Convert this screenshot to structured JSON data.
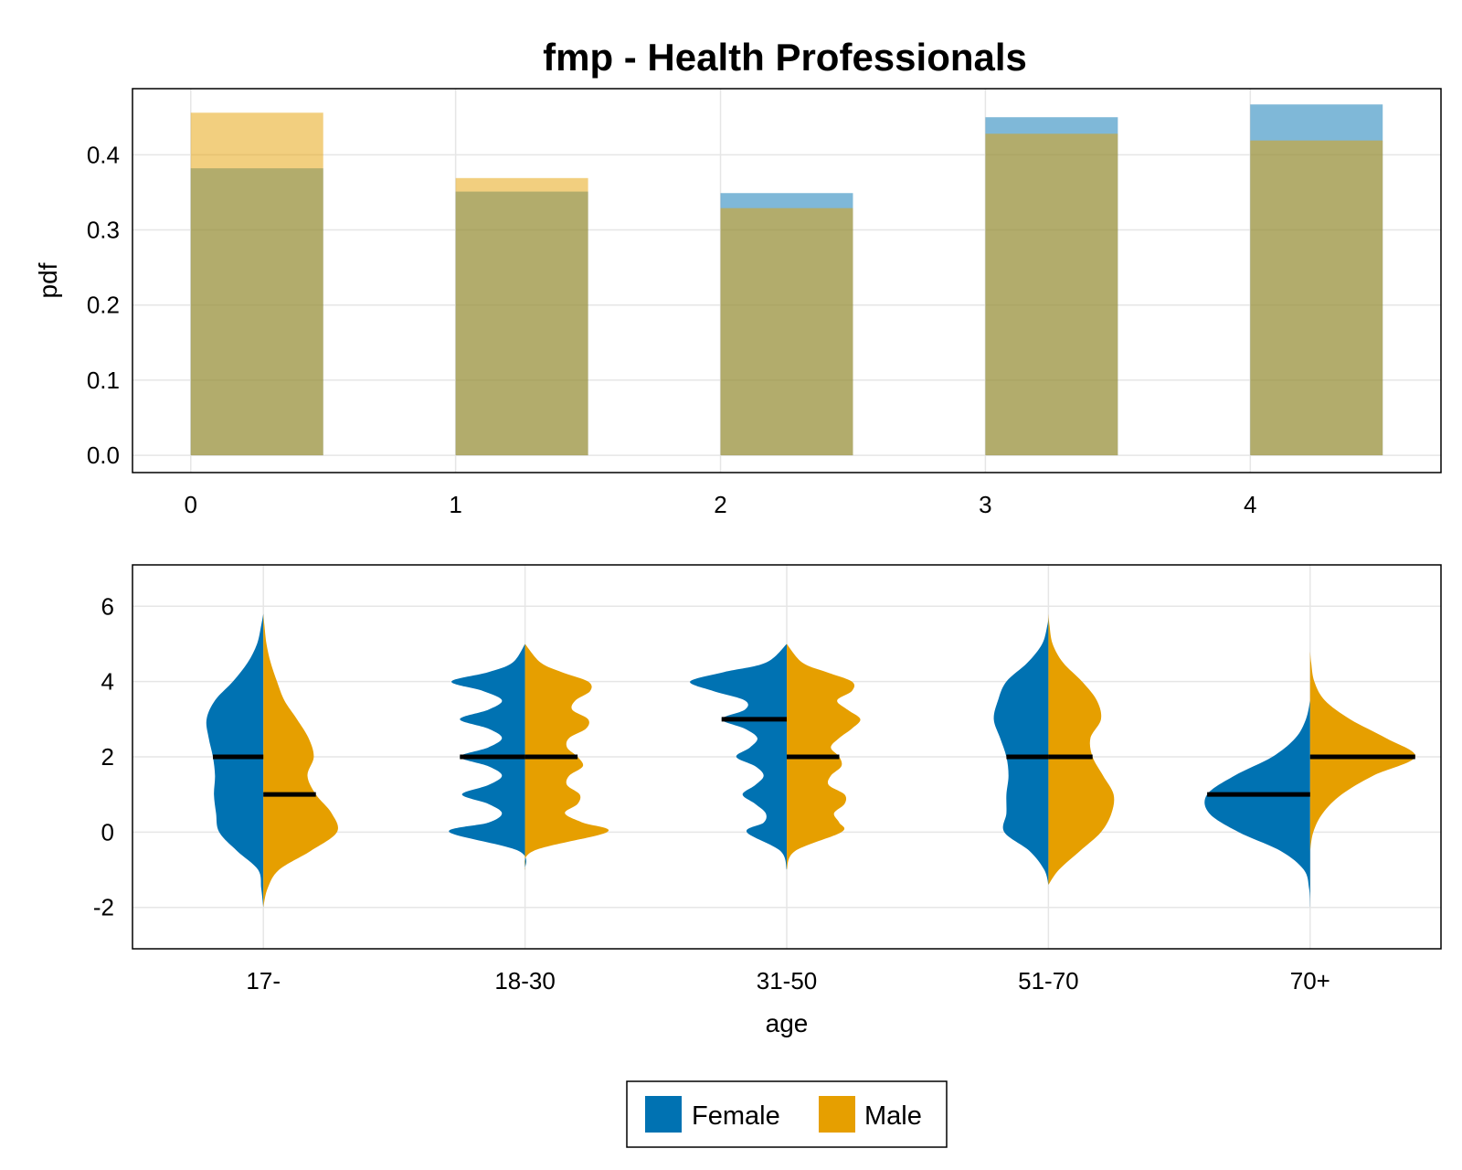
{
  "title": "fmp - Health Professionals",
  "colors": {
    "female": "#0072B2",
    "male": "#E69F00",
    "grid": "#e6e6e6"
  },
  "legend": {
    "placement": "bottom-center",
    "entries": [
      "Female",
      "Male"
    ]
  },
  "chart_data": [
    {
      "type": "bar",
      "ylabel": "pdf",
      "xlabel": "",
      "xlim": [
        -0.22,
        4.72
      ],
      "ylim": [
        -0.023,
        0.488
      ],
      "xticks": [
        0,
        1,
        2,
        3,
        4
      ],
      "xtick_labels": [
        "0",
        "1",
        "2",
        "3",
        "4"
      ],
      "yticks": [
        0.0,
        0.1,
        0.2,
        0.3,
        0.4
      ],
      "ytick_labels": [
        "0.0",
        "0.1",
        "0.2",
        "0.3",
        "0.4"
      ],
      "bar_width": 0.5,
      "grid": true,
      "series": [
        {
          "name": "Female",
          "x": [
            0,
            1,
            2,
            3,
            4
          ],
          "values": [
            0.382,
            0.351,
            0.349,
            0.45,
            0.467
          ]
        },
        {
          "name": "Male",
          "x": [
            0,
            1,
            2,
            3,
            4
          ],
          "values": [
            0.456,
            0.369,
            0.329,
            0.428,
            0.419
          ]
        }
      ]
    },
    {
      "type": "violin",
      "xlabel": "age",
      "ylabel": "",
      "categories": [
        "17-",
        "18-30",
        "31-50",
        "51-70",
        "70+"
      ],
      "ylim": [
        -3.1,
        7.1
      ],
      "yticks": [
        -2,
        0,
        2,
        4,
        6
      ],
      "ytick_labels": [
        "-2",
        "0",
        "2",
        "4",
        "6"
      ],
      "grid": true,
      "series": [
        {
          "name": "Female",
          "medians": [
            2,
            2,
            3,
            2,
            1
          ],
          "profiles": [
            [
              [
                -2,
                0
              ],
              [
                -1.5,
                0.02
              ],
              [
                -1,
                0.05
              ],
              [
                -0.5,
                0.25
              ],
              [
                0,
                0.42
              ],
              [
                0.5,
                0.45
              ],
              [
                1,
                0.47
              ],
              [
                1.5,
                0.46
              ],
              [
                2,
                0.48
              ],
              [
                2.5,
                0.52
              ],
              [
                3,
                0.54
              ],
              [
                3.5,
                0.46
              ],
              [
                4,
                0.29
              ],
              [
                4.5,
                0.15
              ],
              [
                5,
                0.06
              ],
              [
                5.5,
                0.02
              ],
              [
                5.8,
                0
              ]
            ],
            [
              [
                -1,
                0
              ],
              [
                -0.5,
                0.06
              ],
              [
                0,
                0.72
              ],
              [
                0.25,
                0.35
              ],
              [
                0.5,
                0.22
              ],
              [
                0.75,
                0.35
              ],
              [
                1,
                0.6
              ],
              [
                1.25,
                0.35
              ],
              [
                1.5,
                0.22
              ],
              [
                1.75,
                0.35
              ],
              [
                2,
                0.62
              ],
              [
                2.25,
                0.35
              ],
              [
                2.5,
                0.22
              ],
              [
                2.75,
                0.35
              ],
              [
                3,
                0.62
              ],
              [
                3.25,
                0.35
              ],
              [
                3.5,
                0.22
              ],
              [
                3.75,
                0.4
              ],
              [
                4,
                0.7
              ],
              [
                4.25,
                0.35
              ],
              [
                4.5,
                0.12
              ],
              [
                5,
                0
              ]
            ],
            [
              [
                -1,
                0
              ],
              [
                -0.5,
                0.06
              ],
              [
                0,
                0.38
              ],
              [
                0.25,
                0.22
              ],
              [
                0.5,
                0.2
              ],
              [
                0.75,
                0.3
              ],
              [
                1,
                0.42
              ],
              [
                1.25,
                0.3
              ],
              [
                1.5,
                0.22
              ],
              [
                1.75,
                0.3
              ],
              [
                2,
                0.48
              ],
              [
                2.25,
                0.35
              ],
              [
                2.5,
                0.28
              ],
              [
                2.75,
                0.4
              ],
              [
                3,
                0.62
              ],
              [
                3.25,
                0.4
              ],
              [
                3.5,
                0.4
              ],
              [
                3.75,
                0.7
              ],
              [
                4,
                0.92
              ],
              [
                4.25,
                0.6
              ],
              [
                4.5,
                0.2
              ],
              [
                5,
                0
              ]
            ],
            [
              [
                -1.4,
                0
              ],
              [
                -1,
                0.04
              ],
              [
                -0.5,
                0.18
              ],
              [
                0,
                0.42
              ],
              [
                0.5,
                0.4
              ],
              [
                1,
                0.4
              ],
              [
                1.5,
                0.38
              ],
              [
                2,
                0.4
              ],
              [
                2.5,
                0.46
              ],
              [
                3,
                0.52
              ],
              [
                3.5,
                0.48
              ],
              [
                4,
                0.4
              ],
              [
                4.5,
                0.2
              ],
              [
                5,
                0.06
              ],
              [
                5.5,
                0.01
              ],
              [
                5.7,
                0
              ]
            ],
            [
              [
                -2,
                0
              ],
              [
                -1.5,
                0.01
              ],
              [
                -1,
                0.06
              ],
              [
                -0.5,
                0.28
              ],
              [
                0,
                0.68
              ],
              [
                0.5,
                0.96
              ],
              [
                1,
                0.98
              ],
              [
                1.5,
                0.72
              ],
              [
                2,
                0.36
              ],
              [
                2.5,
                0.14
              ],
              [
                3,
                0.04
              ],
              [
                3.5,
                0
              ]
            ]
          ]
        },
        {
          "name": "Male",
          "medians": [
            1,
            2,
            2,
            2,
            2
          ],
          "profiles": [
            [
              [
                -2,
                0
              ],
              [
                -1.5,
                0.04
              ],
              [
                -1,
                0.15
              ],
              [
                -0.5,
                0.45
              ],
              [
                0,
                0.7
              ],
              [
                0.5,
                0.65
              ],
              [
                1,
                0.5
              ],
              [
                1.5,
                0.42
              ],
              [
                2,
                0.48
              ],
              [
                2.5,
                0.43
              ],
              [
                3,
                0.32
              ],
              [
                3.5,
                0.2
              ],
              [
                4,
                0.13
              ],
              [
                4.5,
                0.07
              ],
              [
                5,
                0.03
              ],
              [
                5.5,
                0.01
              ],
              [
                5.8,
                0
              ]
            ],
            [
              [
                -1,
                0
              ],
              [
                -0.5,
                0.08
              ],
              [
                0,
                0.78
              ],
              [
                0.25,
                0.55
              ],
              [
                0.5,
                0.38
              ],
              [
                0.75,
                0.5
              ],
              [
                1,
                0.52
              ],
              [
                1.25,
                0.4
              ],
              [
                1.5,
                0.42
              ],
              [
                1.75,
                0.55
              ],
              [
                2,
                0.5
              ],
              [
                2.25,
                0.4
              ],
              [
                2.5,
                0.42
              ],
              [
                2.75,
                0.58
              ],
              [
                3,
                0.6
              ],
              [
                3.25,
                0.45
              ],
              [
                3.5,
                0.48
              ],
              [
                3.75,
                0.62
              ],
              [
                4,
                0.6
              ],
              [
                4.25,
                0.35
              ],
              [
                4.5,
                0.15
              ],
              [
                5,
                0
              ]
            ],
            [
              [
                -1,
                0
              ],
              [
                -0.5,
                0.08
              ],
              [
                0,
                0.52
              ],
              [
                0.25,
                0.5
              ],
              [
                0.5,
                0.45
              ],
              [
                0.75,
                0.55
              ],
              [
                1,
                0.55
              ],
              [
                1.25,
                0.4
              ],
              [
                1.5,
                0.42
              ],
              [
                1.75,
                0.52
              ],
              [
                2,
                0.5
              ],
              [
                2.25,
                0.42
              ],
              [
                2.5,
                0.5
              ],
              [
                2.75,
                0.62
              ],
              [
                3,
                0.7
              ],
              [
                3.25,
                0.58
              ],
              [
                3.5,
                0.48
              ],
              [
                3.75,
                0.62
              ],
              [
                4,
                0.62
              ],
              [
                4.25,
                0.38
              ],
              [
                4.5,
                0.15
              ],
              [
                5,
                0
              ]
            ],
            [
              [
                -1.4,
                0
              ],
              [
                -1,
                0.1
              ],
              [
                -0.5,
                0.3
              ],
              [
                0,
                0.5
              ],
              [
                0.5,
                0.6
              ],
              [
                1,
                0.62
              ],
              [
                1.5,
                0.52
              ],
              [
                2,
                0.42
              ],
              [
                2.5,
                0.4
              ],
              [
                3,
                0.5
              ],
              [
                3.5,
                0.46
              ],
              [
                4,
                0.32
              ],
              [
                4.5,
                0.14
              ],
              [
                5,
                0.04
              ],
              [
                5.5,
                0.01
              ],
              [
                5.8,
                0
              ]
            ],
            [
              [
                -0.5,
                0
              ],
              [
                0,
                0.03
              ],
              [
                0.5,
                0.12
              ],
              [
                1,
                0.3
              ],
              [
                1.5,
                0.6
              ],
              [
                2,
                1.0
              ],
              [
                2.5,
                0.72
              ],
              [
                3,
                0.38
              ],
              [
                3.5,
                0.14
              ],
              [
                4,
                0.04
              ],
              [
                4.5,
                0.01
              ],
              [
                4.8,
                0
              ]
            ]
          ]
        }
      ]
    }
  ]
}
